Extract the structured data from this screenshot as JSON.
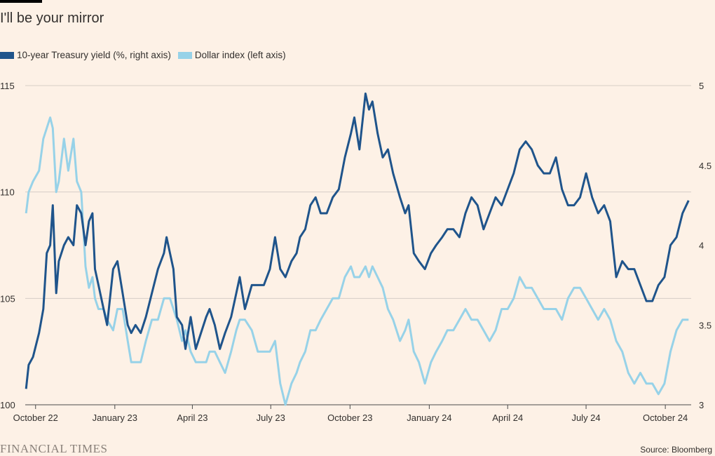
{
  "title": "I'll be your mirror",
  "legend": {
    "yield_label": "10-year Treasury yield (%, right axis)",
    "dollar_label": "Dollar index (left axis)"
  },
  "colors": {
    "yield": "#1f548b",
    "dollar": "#97d2e8",
    "grid": "#d6cec6",
    "background": "#fdf1e6"
  },
  "brand": "FINANCIAL TIMES",
  "source": "Source: Bloomberg",
  "chart_data": {
    "type": "line",
    "title": "I'll be your mirror",
    "x_range": [
      "2022-09-19",
      "2024-10-31"
    ],
    "x_ticks": [
      {
        "date": "2022-10-01",
        "label": "October 22"
      },
      {
        "date": "2023-01-01",
        "label": "January 23"
      },
      {
        "date": "2023-04-01",
        "label": "April 23"
      },
      {
        "date": "2023-07-01",
        "label": "July 23"
      },
      {
        "date": "2023-10-01",
        "label": "October 23"
      },
      {
        "date": "2024-01-01",
        "label": "January 24"
      },
      {
        "date": "2024-04-01",
        "label": "April 24"
      },
      {
        "date": "2024-07-01",
        "label": "July 24"
      },
      {
        "date": "2024-10-01",
        "label": "October 24"
      }
    ],
    "y_left": {
      "min": 100,
      "max": 115,
      "ticks": [
        "100",
        "105",
        "110",
        "115"
      ]
    },
    "y_right": {
      "min": 3,
      "max": 5,
      "ticks": [
        "3",
        "3.5",
        "4",
        "4.5",
        "5"
      ]
    },
    "grid": true,
    "legend_position": "top-left",
    "series": [
      {
        "name": "10-year Treasury yield (%, right axis)",
        "axis": "right",
        "points": [
          [
            "2022-09-20",
            3.1
          ],
          [
            "2022-09-23",
            3.25
          ],
          [
            "2022-09-28",
            3.3
          ],
          [
            "2022-10-05",
            3.45
          ],
          [
            "2022-10-10",
            3.6
          ],
          [
            "2022-10-14",
            3.95
          ],
          [
            "2022-10-18",
            4.0
          ],
          [
            "2022-10-21",
            4.25
          ],
          [
            "2022-10-25",
            3.7
          ],
          [
            "2022-10-28",
            3.9
          ],
          [
            "2022-11-03",
            4.0
          ],
          [
            "2022-11-08",
            4.05
          ],
          [
            "2022-11-14",
            4.0
          ],
          [
            "2022-11-18",
            4.25
          ],
          [
            "2022-11-23",
            4.2
          ],
          [
            "2022-11-28",
            4.0
          ],
          [
            "2022-12-02",
            4.15
          ],
          [
            "2022-12-06",
            4.2
          ],
          [
            "2022-12-09",
            3.85
          ],
          [
            "2022-12-13",
            3.75
          ],
          [
            "2022-12-19",
            3.6
          ],
          [
            "2022-12-23",
            3.5
          ],
          [
            "2022-12-30",
            3.85
          ],
          [
            "2023-01-04",
            3.9
          ],
          [
            "2023-01-10",
            3.7
          ],
          [
            "2023-01-16",
            3.5
          ],
          [
            "2023-01-20",
            3.45
          ],
          [
            "2023-01-25",
            3.5
          ],
          [
            "2023-01-31",
            3.45
          ],
          [
            "2023-02-06",
            3.55
          ],
          [
            "2023-02-13",
            3.7
          ],
          [
            "2023-02-20",
            3.85
          ],
          [
            "2023-02-27",
            3.95
          ],
          [
            "2023-03-02",
            4.05
          ],
          [
            "2023-03-06",
            3.95
          ],
          [
            "2023-03-10",
            3.85
          ],
          [
            "2023-03-14",
            3.55
          ],
          [
            "2023-03-20",
            3.5
          ],
          [
            "2023-03-24",
            3.35
          ],
          [
            "2023-03-30",
            3.55
          ],
          [
            "2023-04-05",
            3.35
          ],
          [
            "2023-04-11",
            3.45
          ],
          [
            "2023-04-17",
            3.55
          ],
          [
            "2023-04-21",
            3.6
          ],
          [
            "2023-04-27",
            3.5
          ],
          [
            "2023-05-03",
            3.35
          ],
          [
            "2023-05-09",
            3.45
          ],
          [
            "2023-05-16",
            3.55
          ],
          [
            "2023-05-22",
            3.7
          ],
          [
            "2023-05-26",
            3.8
          ],
          [
            "2023-06-01",
            3.6
          ],
          [
            "2023-06-09",
            3.75
          ],
          [
            "2023-06-16",
            3.75
          ],
          [
            "2023-06-23",
            3.75
          ],
          [
            "2023-06-30",
            3.85
          ],
          [
            "2023-07-06",
            4.05
          ],
          [
            "2023-07-12",
            3.85
          ],
          [
            "2023-07-18",
            3.8
          ],
          [
            "2023-07-25",
            3.9
          ],
          [
            "2023-07-31",
            3.95
          ],
          [
            "2023-08-04",
            4.05
          ],
          [
            "2023-08-10",
            4.1
          ],
          [
            "2023-08-16",
            4.25
          ],
          [
            "2023-08-22",
            4.3
          ],
          [
            "2023-08-28",
            4.2
          ],
          [
            "2023-09-04",
            4.2
          ],
          [
            "2023-09-11",
            4.3
          ],
          [
            "2023-09-18",
            4.35
          ],
          [
            "2023-09-25",
            4.55
          ],
          [
            "2023-10-02",
            4.7
          ],
          [
            "2023-10-06",
            4.8
          ],
          [
            "2023-10-12",
            4.6
          ],
          [
            "2023-10-19",
            4.95
          ],
          [
            "2023-10-23",
            4.85
          ],
          [
            "2023-10-27",
            4.9
          ],
          [
            "2023-11-02",
            4.7
          ],
          [
            "2023-11-08",
            4.55
          ],
          [
            "2023-11-14",
            4.6
          ],
          [
            "2023-11-20",
            4.45
          ],
          [
            "2023-11-28",
            4.3
          ],
          [
            "2023-12-04",
            4.2
          ],
          [
            "2023-12-08",
            4.25
          ],
          [
            "2023-12-14",
            3.95
          ],
          [
            "2023-12-20",
            3.9
          ],
          [
            "2023-12-27",
            3.85
          ],
          [
            "2024-01-03",
            3.95
          ],
          [
            "2024-01-09",
            4.0
          ],
          [
            "2024-01-16",
            4.05
          ],
          [
            "2024-01-22",
            4.1
          ],
          [
            "2024-01-29",
            4.1
          ],
          [
            "2024-02-05",
            4.05
          ],
          [
            "2024-02-12",
            4.2
          ],
          [
            "2024-02-19",
            4.3
          ],
          [
            "2024-02-26",
            4.25
          ],
          [
            "2024-03-04",
            4.1
          ],
          [
            "2024-03-11",
            4.2
          ],
          [
            "2024-03-18",
            4.3
          ],
          [
            "2024-03-25",
            4.25
          ],
          [
            "2024-04-01",
            4.35
          ],
          [
            "2024-04-08",
            4.45
          ],
          [
            "2024-04-15",
            4.6
          ],
          [
            "2024-04-22",
            4.65
          ],
          [
            "2024-04-29",
            4.6
          ],
          [
            "2024-05-06",
            4.5
          ],
          [
            "2024-05-13",
            4.45
          ],
          [
            "2024-05-20",
            4.45
          ],
          [
            "2024-05-27",
            4.55
          ],
          [
            "2024-06-03",
            4.35
          ],
          [
            "2024-06-10",
            4.25
          ],
          [
            "2024-06-17",
            4.25
          ],
          [
            "2024-06-24",
            4.3
          ],
          [
            "2024-07-01",
            4.45
          ],
          [
            "2024-07-08",
            4.3
          ],
          [
            "2024-07-15",
            4.2
          ],
          [
            "2024-07-22",
            4.25
          ],
          [
            "2024-07-29",
            4.15
          ],
          [
            "2024-08-05",
            3.8
          ],
          [
            "2024-08-12",
            3.9
          ],
          [
            "2024-08-19",
            3.85
          ],
          [
            "2024-08-26",
            3.85
          ],
          [
            "2024-09-02",
            3.75
          ],
          [
            "2024-09-09",
            3.65
          ],
          [
            "2024-09-16",
            3.65
          ],
          [
            "2024-09-23",
            3.75
          ],
          [
            "2024-09-30",
            3.8
          ],
          [
            "2024-10-07",
            4.0
          ],
          [
            "2024-10-14",
            4.05
          ],
          [
            "2024-10-21",
            4.2
          ],
          [
            "2024-10-28",
            4.28
          ]
        ]
      },
      {
        "name": "Dollar index (left axis)",
        "axis": "left",
        "points": [
          [
            "2022-09-20",
            109.0
          ],
          [
            "2022-09-23",
            110.0
          ],
          [
            "2022-09-28",
            110.5
          ],
          [
            "2022-10-05",
            111.0
          ],
          [
            "2022-10-10",
            112.5
          ],
          [
            "2022-10-14",
            113.0
          ],
          [
            "2022-10-18",
            113.5
          ],
          [
            "2022-10-21",
            113.0
          ],
          [
            "2022-10-25",
            110.0
          ],
          [
            "2022-10-28",
            110.5
          ],
          [
            "2022-11-03",
            112.5
          ],
          [
            "2022-11-08",
            111.0
          ],
          [
            "2022-11-14",
            112.5
          ],
          [
            "2022-11-18",
            110.5
          ],
          [
            "2022-11-23",
            110.0
          ],
          [
            "2022-11-28",
            106.5
          ],
          [
            "2022-12-02",
            105.5
          ],
          [
            "2022-12-06",
            106.0
          ],
          [
            "2022-12-09",
            105.0
          ],
          [
            "2022-12-13",
            104.5
          ],
          [
            "2022-12-19",
            104.5
          ],
          [
            "2022-12-23",
            104.0
          ],
          [
            "2022-12-30",
            103.5
          ],
          [
            "2023-01-04",
            104.5
          ],
          [
            "2023-01-10",
            104.5
          ],
          [
            "2023-01-16",
            103.0
          ],
          [
            "2023-01-20",
            102.0
          ],
          [
            "2023-01-25",
            102.0
          ],
          [
            "2023-01-31",
            102.0
          ],
          [
            "2023-02-06",
            103.0
          ],
          [
            "2023-02-13",
            104.0
          ],
          [
            "2023-02-20",
            104.0
          ],
          [
            "2023-02-27",
            105.0
          ],
          [
            "2023-03-02",
            105.0
          ],
          [
            "2023-03-06",
            105.0
          ],
          [
            "2023-03-10",
            104.5
          ],
          [
            "2023-03-14",
            104.0
          ],
          [
            "2023-03-20",
            103.0
          ],
          [
            "2023-03-24",
            103.5
          ],
          [
            "2023-03-30",
            102.5
          ],
          [
            "2023-04-05",
            102.0
          ],
          [
            "2023-04-11",
            102.0
          ],
          [
            "2023-04-17",
            102.0
          ],
          [
            "2023-04-21",
            102.5
          ],
          [
            "2023-04-27",
            102.5
          ],
          [
            "2023-05-03",
            102.0
          ],
          [
            "2023-05-09",
            101.5
          ],
          [
            "2023-05-16",
            102.5
          ],
          [
            "2023-05-22",
            103.5
          ],
          [
            "2023-05-26",
            104.0
          ],
          [
            "2023-06-01",
            104.0
          ],
          [
            "2023-06-09",
            103.5
          ],
          [
            "2023-06-16",
            102.5
          ],
          [
            "2023-06-23",
            102.5
          ],
          [
            "2023-06-30",
            102.5
          ],
          [
            "2023-07-06",
            103.0
          ],
          [
            "2023-07-12",
            101.0
          ],
          [
            "2023-07-18",
            100.0
          ],
          [
            "2023-07-25",
            101.0
          ],
          [
            "2023-07-31",
            101.5
          ],
          [
            "2023-08-04",
            102.0
          ],
          [
            "2023-08-10",
            102.5
          ],
          [
            "2023-08-16",
            103.5
          ],
          [
            "2023-08-22",
            103.5
          ],
          [
            "2023-08-28",
            104.0
          ],
          [
            "2023-09-04",
            104.5
          ],
          [
            "2023-09-11",
            105.0
          ],
          [
            "2023-09-18",
            105.0
          ],
          [
            "2023-09-25",
            106.0
          ],
          [
            "2023-10-02",
            106.5
          ],
          [
            "2023-10-06",
            106.0
          ],
          [
            "2023-10-12",
            106.0
          ],
          [
            "2023-10-19",
            106.5
          ],
          [
            "2023-10-23",
            106.0
          ],
          [
            "2023-10-27",
            106.5
          ],
          [
            "2023-11-02",
            106.0
          ],
          [
            "2023-11-08",
            105.5
          ],
          [
            "2023-11-14",
            104.5
          ],
          [
            "2023-11-20",
            104.0
          ],
          [
            "2023-11-28",
            103.0
          ],
          [
            "2023-12-04",
            103.5
          ],
          [
            "2023-12-08",
            104.0
          ],
          [
            "2023-12-14",
            102.5
          ],
          [
            "2023-12-20",
            102.0
          ],
          [
            "2023-12-27",
            101.0
          ],
          [
            "2024-01-03",
            102.0
          ],
          [
            "2024-01-09",
            102.5
          ],
          [
            "2024-01-16",
            103.0
          ],
          [
            "2024-01-22",
            103.5
          ],
          [
            "2024-01-29",
            103.5
          ],
          [
            "2024-02-05",
            104.0
          ],
          [
            "2024-02-12",
            104.5
          ],
          [
            "2024-02-19",
            104.0
          ],
          [
            "2024-02-26",
            104.0
          ],
          [
            "2024-03-04",
            103.5
          ],
          [
            "2024-03-11",
            103.0
          ],
          [
            "2024-03-18",
            103.5
          ],
          [
            "2024-03-25",
            104.5
          ],
          [
            "2024-04-01",
            104.5
          ],
          [
            "2024-04-08",
            105.0
          ],
          [
            "2024-04-15",
            106.0
          ],
          [
            "2024-04-22",
            105.5
          ],
          [
            "2024-04-29",
            105.5
          ],
          [
            "2024-05-06",
            105.0
          ],
          [
            "2024-05-13",
            104.5
          ],
          [
            "2024-05-20",
            104.5
          ],
          [
            "2024-05-27",
            104.5
          ],
          [
            "2024-06-03",
            104.0
          ],
          [
            "2024-06-10",
            105.0
          ],
          [
            "2024-06-17",
            105.5
          ],
          [
            "2024-06-24",
            105.5
          ],
          [
            "2024-07-01",
            105.0
          ],
          [
            "2024-07-08",
            104.5
          ],
          [
            "2024-07-15",
            104.0
          ],
          [
            "2024-07-22",
            104.5
          ],
          [
            "2024-07-29",
            104.0
          ],
          [
            "2024-08-05",
            103.0
          ],
          [
            "2024-08-12",
            102.5
          ],
          [
            "2024-08-19",
            101.5
          ],
          [
            "2024-08-26",
            101.0
          ],
          [
            "2024-09-02",
            101.5
          ],
          [
            "2024-09-09",
            101.0
          ],
          [
            "2024-09-16",
            101.0
          ],
          [
            "2024-09-23",
            100.5
          ],
          [
            "2024-09-30",
            101.0
          ],
          [
            "2024-10-07",
            102.5
          ],
          [
            "2024-10-14",
            103.5
          ],
          [
            "2024-10-21",
            104.0
          ],
          [
            "2024-10-28",
            104.0
          ]
        ]
      }
    ]
  }
}
